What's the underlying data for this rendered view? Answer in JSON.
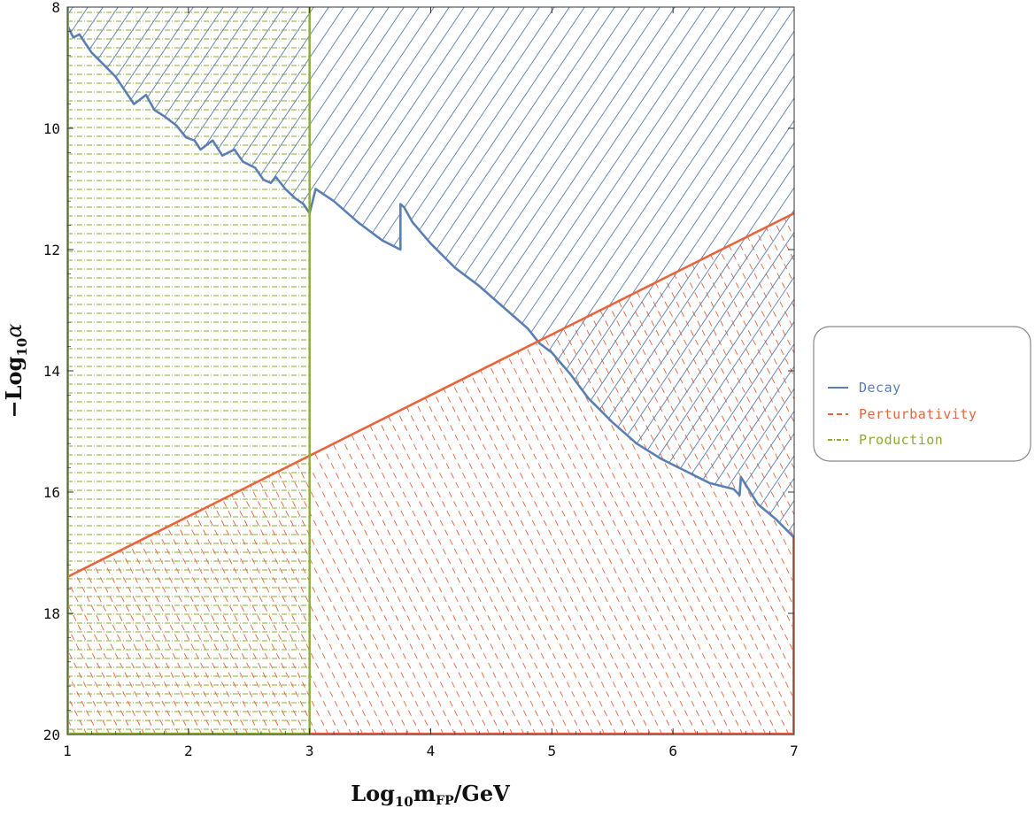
{
  "chart_data": {
    "type": "area",
    "x_axis": {
      "label_main": "Log",
      "label_sub": "10",
      "label_m": "m",
      "label_m_sub": "FP",
      "label_unit": "/GeV",
      "range": [
        1,
        7
      ],
      "ticks": [
        "1",
        "2",
        "3",
        "4",
        "5",
        "6",
        "7"
      ]
    },
    "y_axis": {
      "label_main": "−Log",
      "label_sub": "10",
      "label_var": "α",
      "range": [
        8,
        20
      ],
      "inverted": true,
      "ticks": [
        "8",
        "10",
        "12",
        "14",
        "16",
        "18",
        "20"
      ]
    },
    "series": [
      {
        "name": "Decay",
        "color": "#5b7fb3",
        "line_style": "solid",
        "hatch": "diagonal-up",
        "boundary_x": [
          1.0,
          1.05,
          1.1,
          1.15,
          1.2,
          1.3,
          1.4,
          1.5,
          1.55,
          1.65,
          1.72,
          1.8,
          1.9,
          1.98,
          2.05,
          2.1,
          2.2,
          2.28,
          2.38,
          2.45,
          2.55,
          2.62,
          2.68,
          2.72,
          2.8,
          2.88,
          2.95,
          3.0,
          3.05,
          3.2,
          3.4,
          3.6,
          3.75,
          3.75,
          3.78,
          3.85,
          4.0,
          4.2,
          4.4,
          4.6,
          4.8,
          4.9,
          5.0,
          5.15,
          5.3,
          5.5,
          5.7,
          5.9,
          6.1,
          6.3,
          6.5,
          6.55,
          6.56,
          6.7,
          6.85,
          7.0
        ],
        "boundary_y": [
          8.3,
          8.5,
          8.45,
          8.6,
          8.75,
          8.95,
          9.15,
          9.45,
          9.6,
          9.45,
          9.7,
          9.8,
          9.95,
          10.15,
          10.2,
          10.35,
          10.2,
          10.45,
          10.35,
          10.55,
          10.65,
          10.85,
          10.9,
          10.8,
          11.0,
          11.15,
          11.25,
          11.4,
          11.0,
          11.2,
          11.55,
          11.85,
          12.0,
          11.25,
          11.3,
          11.55,
          11.9,
          12.3,
          12.6,
          12.95,
          13.3,
          13.55,
          13.7,
          14.05,
          14.45,
          14.85,
          15.2,
          15.45,
          15.65,
          15.85,
          15.95,
          16.05,
          15.75,
          16.2,
          16.45,
          16.75
        ]
      },
      {
        "name": "Perturbativity",
        "color": "#e8643c",
        "line_style": "dashed",
        "hatch": "diagonal-down-dashed",
        "boundary_x": [
          1,
          7
        ],
        "boundary_y": [
          17.4,
          11.4
        ]
      },
      {
        "name": "Production",
        "color": "#8aad2e",
        "line_style": "dash-dot",
        "hatch": "horizontal-dash-dot",
        "boundary_x": [
          3,
          3
        ],
        "boundary_y": [
          8,
          20
        ]
      }
    ],
    "legend": {
      "placement": "right",
      "entries": [
        {
          "label": "Decay",
          "color": "#5b7fb3",
          "glyph": "—"
        },
        {
          "label": "Perturbativity",
          "color": "#e8643c",
          "glyph": "--"
        },
        {
          "label": "Production",
          "color": "#8aad2e",
          "glyph": "---"
        }
      ]
    },
    "grid": false
  }
}
